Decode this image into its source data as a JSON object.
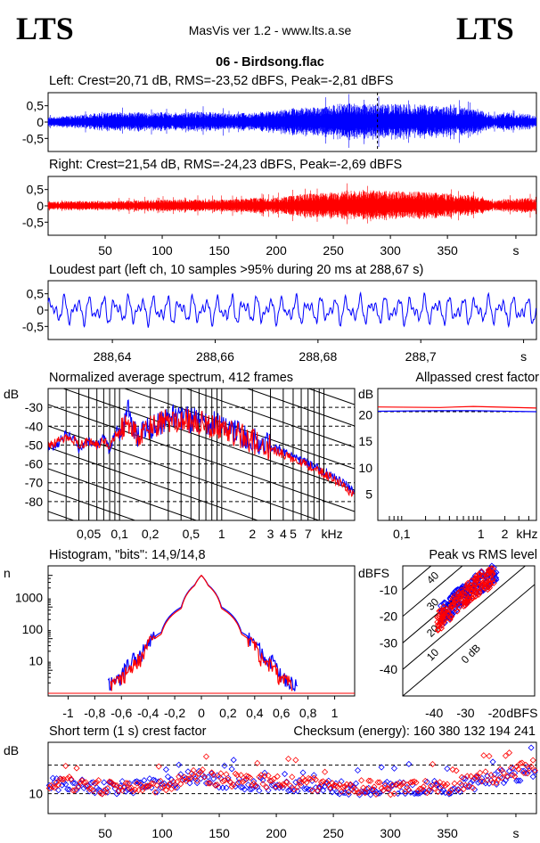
{
  "header": {
    "logo_left": "LTS",
    "logo_right": "LTS",
    "app_title": "MasVis ver 1.2 - www.lts.a.se",
    "file_title": "06 - Birdsong.flac"
  },
  "colors": {
    "left": "#0000ff",
    "right": "#ff0000",
    "grid_solid": "#000000",
    "grid_dash": "#000000"
  },
  "chart_data": [
    {
      "id": "left_waveform",
      "type": "area",
      "title": "Left: Crest=20,71 dB, RMS=-23,52 dBFS, Peak=-2,81 dBFS",
      "ylim": [
        -0.9,
        0.9
      ],
      "xlim": [
        0,
        428
      ],
      "yticks": [
        "0,5",
        "0",
        "-0,5"
      ],
      "ytick_values": [
        0.5,
        0,
        -0.5
      ],
      "peak_marker_x": 288.67,
      "envelope_x": [
        0,
        20,
        50,
        80,
        110,
        140,
        160,
        180,
        200,
        220,
        240,
        260,
        280,
        300,
        320,
        340,
        360,
        380,
        390,
        400,
        420,
        428
      ],
      "envelope_amp": [
        0.15,
        0.2,
        0.3,
        0.3,
        0.3,
        0.32,
        0.25,
        0.3,
        0.35,
        0.45,
        0.45,
        0.6,
        0.55,
        0.55,
        0.55,
        0.5,
        0.45,
        0.35,
        0.2,
        0.3,
        0.25,
        0.2
      ]
    },
    {
      "id": "right_waveform",
      "type": "area",
      "title": "Right: Crest=21,54 dB, RMS=-24,23 dBFS, Peak=-2,69 dBFS",
      "ylim": [
        -0.9,
        0.9
      ],
      "xlim": [
        0,
        428
      ],
      "yticks": [
        "0,5",
        "0",
        "-0,5"
      ],
      "ytick_values": [
        0.5,
        0,
        -0.5
      ],
      "xticks": [
        "50",
        "100",
        "150",
        "200",
        "250",
        "300",
        "350",
        "s"
      ],
      "xtick_values": [
        50,
        100,
        150,
        200,
        250,
        300,
        350,
        410
      ],
      "envelope_x": [
        0,
        20,
        50,
        80,
        110,
        140,
        160,
        180,
        200,
        220,
        240,
        260,
        280,
        300,
        320,
        340,
        360,
        380,
        390,
        400,
        420,
        428
      ],
      "envelope_amp": [
        0.12,
        0.15,
        0.15,
        0.17,
        0.2,
        0.2,
        0.2,
        0.25,
        0.25,
        0.35,
        0.4,
        0.45,
        0.5,
        0.45,
        0.45,
        0.4,
        0.35,
        0.3,
        0.15,
        0.2,
        0.25,
        0.2
      ]
    },
    {
      "id": "loudest_part",
      "type": "line",
      "title": "Loudest part (left  ch, 10 samples >95% during 20 ms at 288,67 s)",
      "ylim": [
        -0.9,
        0.9
      ],
      "xlim": [
        288.6275,
        288.7225
      ],
      "yticks": [
        "0,5",
        "0",
        "-0,5"
      ],
      "ytick_values": [
        0.5,
        0,
        -0.5
      ],
      "xticks": [
        "288,64",
        "288,66",
        "288,68",
        "288,7",
        "s"
      ],
      "xtick_values": [
        288.64,
        288.66,
        288.68,
        288.7,
        288.72
      ]
    },
    {
      "id": "avg_spectrum",
      "type": "line",
      "title": "Normalized average spectrum, 412 frames",
      "ylabel": "dB",
      "xlabel": "kHz",
      "x_scale": "log",
      "ylim": [
        -90,
        -20
      ],
      "xlim": [
        0.02,
        20
      ],
      "yticks": [
        "-30",
        "-40",
        "-50",
        "-60",
        "-70",
        "-80"
      ],
      "ytick_values": [
        -30,
        -40,
        -50,
        -60,
        -70,
        -80
      ],
      "xticks": [
        "0,05",
        "0,1",
        "0,2",
        "0,5",
        "1",
        "2",
        "3",
        "4",
        "5",
        "7",
        "kHz"
      ],
      "xtick_values": [
        0.05,
        0.1,
        0.2,
        0.5,
        1,
        2,
        3,
        4,
        5,
        7,
        12
      ],
      "series": [
        {
          "color": "#0000ff",
          "points": [
            [
              0.02,
              -52
            ],
            [
              0.025,
              -49
            ],
            [
              0.03,
              -44
            ],
            [
              0.035,
              -46
            ],
            [
              0.04,
              -52
            ],
            [
              0.05,
              -48
            ],
            [
              0.06,
              -50
            ],
            [
              0.07,
              -45
            ],
            [
              0.08,
              -53
            ],
            [
              0.09,
              -43
            ],
            [
              0.1,
              -42
            ],
            [
              0.11,
              -38
            ],
            [
              0.12,
              -30
            ],
            [
              0.13,
              -38
            ],
            [
              0.15,
              -45
            ],
            [
              0.2,
              -40
            ],
            [
              0.3,
              -36
            ],
            [
              0.4,
              -35
            ],
            [
              0.5,
              -37
            ],
            [
              0.7,
              -38
            ],
            [
              1,
              -40
            ],
            [
              1.5,
              -44
            ],
            [
              2,
              -47
            ],
            [
              3,
              -51
            ],
            [
              4,
              -54
            ],
            [
              5,
              -56
            ],
            [
              7,
              -60
            ],
            [
              10,
              -64
            ],
            [
              14,
              -69
            ],
            [
              20,
              -75
            ]
          ]
        },
        {
          "color": "#ff0000",
          "points": [
            [
              0.02,
              -50
            ],
            [
              0.025,
              -48
            ],
            [
              0.03,
              -46
            ],
            [
              0.035,
              -47
            ],
            [
              0.04,
              -50
            ],
            [
              0.05,
              -48
            ],
            [
              0.06,
              -50
            ],
            [
              0.07,
              -47
            ],
            [
              0.08,
              -52
            ],
            [
              0.09,
              -45
            ],
            [
              0.1,
              -44
            ],
            [
              0.11,
              -40
            ],
            [
              0.12,
              -36
            ],
            [
              0.13,
              -40
            ],
            [
              0.15,
              -46
            ],
            [
              0.2,
              -41
            ],
            [
              0.3,
              -37
            ],
            [
              0.4,
              -36
            ],
            [
              0.5,
              -38
            ],
            [
              0.7,
              -39
            ],
            [
              1,
              -41
            ],
            [
              1.5,
              -45
            ],
            [
              2,
              -48
            ],
            [
              3,
              -52
            ],
            [
              4,
              -55
            ],
            [
              5,
              -57
            ],
            [
              7,
              -61
            ],
            [
              10,
              -65
            ],
            [
              14,
              -70
            ],
            [
              20,
              -77
            ]
          ]
        }
      ]
    },
    {
      "id": "allpassed_crest",
      "type": "line",
      "title": "Allpassed crest factor",
      "ylabel": "dB",
      "xlabel": "kHz",
      "x_scale": "log",
      "ylim": [
        0,
        25
      ],
      "xlim": [
        0.05,
        5
      ],
      "yticks": [
        "20",
        "15",
        "10",
        "5"
      ],
      "ytick_values": [
        20,
        15,
        10,
        5
      ],
      "xticks": [
        "0,1",
        "1",
        "2",
        "kHz"
      ],
      "xtick_values": [
        0.1,
        1,
        2,
        3.8
      ],
      "series": [
        {
          "color": "#0000ff",
          "x": [
            0.05,
            0.3,
            0.8,
            5
          ],
          "y": [
            20.7,
            20.8,
            20.8,
            20.6
          ]
        },
        {
          "color": "#ff0000",
          "x": [
            0.05,
            0.3,
            0.8,
            5
          ],
          "y": [
            21.5,
            21.4,
            21.6,
            21.3
          ]
        }
      ]
    },
    {
      "id": "histogram",
      "type": "line",
      "title": "Histogram, \"bits\": 14,9/14,8",
      "ylabel": "n",
      "y_scale": "log",
      "xlim": [
        -1.15,
        1.15
      ],
      "ylim": [
        1,
        10000
      ],
      "yticks": [
        "1000",
        "100",
        "10"
      ],
      "ytick_values": [
        1000,
        100,
        10
      ],
      "xticks": [
        "-1",
        "-0,8",
        "-0,6",
        "-0,4",
        "-0,2",
        "0",
        "0,2",
        "0,4",
        "0,6",
        "0,8",
        "1"
      ],
      "xtick_values": [
        -1,
        -0.8,
        -0.6,
        -0.4,
        -0.2,
        0,
        0.2,
        0.4,
        0.6,
        0.8,
        1
      ],
      "series": [
        {
          "color": "#0000ff",
          "x": [
            -0.7,
            -0.6,
            -0.45,
            -0.3,
            -0.15,
            -0.05,
            0,
            0.05,
            0.15,
            0.3,
            0.45,
            0.6,
            0.72
          ],
          "y": [
            1.5,
            3,
            15,
            80,
            500,
            2500,
            5000,
            2500,
            500,
            80,
            15,
            3,
            1.5
          ]
        },
        {
          "color": "#ff0000",
          "x": [
            -0.68,
            -0.58,
            -0.44,
            -0.3,
            -0.15,
            -0.05,
            0,
            0.05,
            0.15,
            0.3,
            0.44,
            0.58,
            0.68
          ],
          "y": [
            1.5,
            3,
            12,
            70,
            450,
            2400,
            5000,
            2400,
            450,
            70,
            12,
            3,
            1.5
          ]
        }
      ]
    },
    {
      "id": "peak_vs_rms",
      "type": "scatter",
      "title": "Peak vs RMS level",
      "ylabel": "dBFS",
      "xlabel": "dBFS",
      "xlim": [
        -50,
        -8
      ],
      "ylim": [
        -50,
        -1
      ],
      "yticks": [
        "-10",
        "-20",
        "-30",
        "-40"
      ],
      "ytick_values": [
        -10,
        -20,
        -30,
        -40
      ],
      "xticks": [
        "-40",
        "-30",
        "-20",
        "dBFS"
      ],
      "xtick_values": [
        -40,
        -30,
        -20,
        -12
      ],
      "crest_lines_db": [
        0,
        10,
        20,
        30,
        40
      ],
      "crest_labels": [
        "0 dB",
        "10",
        "20",
        "30",
        "40"
      ],
      "series": [
        {
          "color": "#0000ff",
          "x": [
            -38,
            -35,
            -33,
            -30,
            -28,
            -26,
            -24,
            -22,
            -20
          ],
          "y": [
            -20,
            -17,
            -14,
            -12,
            -9,
            -8,
            -6,
            -5,
            -4
          ]
        },
        {
          "color": "#ff0000",
          "x": [
            -39,
            -36,
            -34,
            -31,
            -29,
            -27,
            -25,
            -23,
            -21
          ],
          "y": [
            -22,
            -19,
            -16,
            -13,
            -11,
            -9,
            -7,
            -6,
            -5
          ]
        }
      ]
    },
    {
      "id": "short_term_crest",
      "type": "scatter",
      "title": "Short term (1 s) crest factor",
      "annotation": "Checksum (energy):  160 380 132 194 241",
      "ylabel": "dB",
      "xlim": [
        0,
        428
      ],
      "ylim": [
        3,
        28
      ],
      "yticks": [
        "10"
      ],
      "ytick_values": [
        10
      ],
      "dashed_lines": [
        10,
        20
      ],
      "xticks": [
        "50",
        "100",
        "150",
        "200",
        "250",
        "300",
        "350",
        "s"
      ],
      "xtick_values": [
        50,
        100,
        150,
        200,
        250,
        300,
        350,
        410
      ],
      "series": [
        {
          "color": "#0000ff",
          "x": [
            5,
            50,
            100,
            130,
            150,
            200,
            250,
            300,
            350,
            400,
            428
          ],
          "y": [
            13,
            12,
            13,
            16,
            14,
            13,
            12,
            12,
            12,
            16,
            18
          ]
        },
        {
          "color": "#ff0000",
          "x": [
            5,
            50,
            100,
            130,
            150,
            200,
            250,
            300,
            350,
            400,
            428
          ],
          "y": [
            14,
            12,
            13,
            17,
            15,
            14,
            13,
            12,
            12,
            17,
            20
          ]
        }
      ]
    }
  ]
}
